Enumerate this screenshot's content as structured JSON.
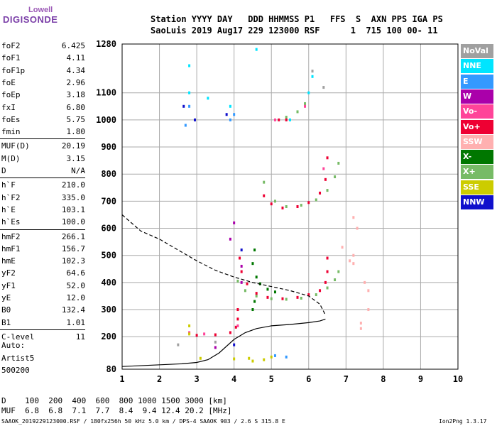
{
  "logo": {
    "line1": "Lowell",
    "line2": "DIGISONDE"
  },
  "header": {
    "line1": "Station YYYY DAY   DDD HHMMSS P1   FFS  S  AXN PPS IGA PS",
    "line2": "SaoLuis 2019 Aug17 229 123000 RSF      1  715 100 00- 11"
  },
  "params": [
    {
      "name": "foF2",
      "value": "6.425"
    },
    {
      "name": "foF1",
      "value": "4.11"
    },
    {
      "name": "foF1p",
      "value": "4.34"
    },
    {
      "name": "foE",
      "value": "2.96"
    },
    {
      "name": "foEp",
      "value": "3.18"
    },
    {
      "name": "fxI",
      "value": "6.80"
    },
    {
      "name": "foEs",
      "value": "5.75"
    },
    {
      "name": "fmin",
      "value": "1.80"
    },
    {
      "name": "MUF(D)",
      "value": "20.19"
    },
    {
      "name": "M(D)",
      "value": "3.15"
    },
    {
      "name": "D",
      "value": "N/A"
    },
    {
      "name": "h`F",
      "value": "210.0"
    },
    {
      "name": "h`F2",
      "value": "335.0"
    },
    {
      "name": "h`E",
      "value": "103.1"
    },
    {
      "name": "h`Es",
      "value": "100.0"
    },
    {
      "name": "hmF2",
      "value": "266.1"
    },
    {
      "name": "hmF1",
      "value": "156.7"
    },
    {
      "name": "hmE",
      "value": "102.3"
    },
    {
      "name": "yF2",
      "value": "64.6"
    },
    {
      "name": "yF1",
      "value": "52.0"
    },
    {
      "name": "yE",
      "value": "12.0"
    },
    {
      "name": "B0",
      "value": "132.4"
    },
    {
      "name": "B1",
      "value": "1.01"
    },
    {
      "name": "C-level",
      "value": "11"
    }
  ],
  "autoscaling": {
    "label": "Auto:",
    "artist": "Artist5",
    "version": "500200"
  },
  "legend": [
    {
      "label": "NoVal",
      "color": "#a0a0a0"
    },
    {
      "label": "NNE",
      "color": "#00e5ff"
    },
    {
      "label": "E",
      "color": "#3399ff"
    },
    {
      "label": "W",
      "color": "#aa00aa"
    },
    {
      "label": "Vo-",
      "color": "#ff4499"
    },
    {
      "label": "Vo+",
      "color": "#ee0033"
    },
    {
      "label": "SSW",
      "color": "#ffb0b0"
    },
    {
      "label": "X-",
      "color": "#007700"
    },
    {
      "label": "X+",
      "color": "#77bb66"
    },
    {
      "label": "SSE",
      "color": "#cccc00"
    },
    {
      "label": "NNW",
      "color": "#1010cc"
    }
  ],
  "muf_table": {
    "line1": "D    100  200  400  600  800 1000 1500 3000 [km]",
    "line2": "MUF  6.8  6.8  7.1  7.7  8.4  9.4 12.4 20.2 [MHz]"
  },
  "footer": {
    "left": "SAAOK_2019229123000.RSF / 180fx256h 50 kHz 5.0 km / DPS-4 SAAOK 903 / 2.6 S 315.8 E",
    "right": "Ion2Png 1.3.17"
  },
  "chart_data": {
    "type": "scatter",
    "xlim": [
      1,
      10
    ],
    "ylim": [
      80,
      1280
    ],
    "x_ticks": [
      "1",
      "2",
      "3",
      "4",
      "5",
      "6",
      "7",
      "8",
      "9",
      "10"
    ],
    "y_ticks": [
      "80",
      "200",
      "300",
      "400",
      "500",
      "600",
      "700",
      "800",
      "900",
      "1000",
      "1100",
      "1280"
    ],
    "grid": true,
    "series": [
      {
        "name": "X+",
        "color": "#77bb66",
        "points": [
          [
            4.1,
            405
          ],
          [
            4.3,
            370
          ],
          [
            4.6,
            350
          ],
          [
            5.0,
            340
          ],
          [
            5.4,
            338
          ],
          [
            5.8,
            342
          ],
          [
            6.2,
            355
          ],
          [
            6.5,
            380
          ],
          [
            6.7,
            410
          ],
          [
            6.8,
            440
          ],
          [
            4.8,
            770
          ],
          [
            5.1,
            700
          ],
          [
            5.4,
            680
          ],
          [
            5.8,
            685
          ],
          [
            6.2,
            705
          ],
          [
            6.5,
            740
          ],
          [
            6.7,
            790
          ],
          [
            6.8,
            840
          ],
          [
            5.4,
            1010
          ],
          [
            5.7,
            1030
          ],
          [
            5.9,
            1060
          ]
        ]
      },
      {
        "name": "X-",
        "color": "#007700",
        "points": [
          [
            4.5,
            470
          ],
          [
            4.6,
            420
          ],
          [
            4.7,
            395
          ],
          [
            4.9,
            375
          ],
          [
            5.1,
            365
          ],
          [
            4.55,
            520
          ],
          [
            4.5,
            300
          ],
          [
            4.55,
            330
          ]
        ]
      },
      {
        "name": "Vo+",
        "color": "#ee0033",
        "points": [
          [
            4.15,
            490
          ],
          [
            4.2,
            440
          ],
          [
            4.35,
            395
          ],
          [
            4.6,
            360
          ],
          [
            4.9,
            345
          ],
          [
            5.3,
            340
          ],
          [
            5.7,
            345
          ],
          [
            6.0,
            355
          ],
          [
            6.3,
            370
          ],
          [
            6.45,
            400
          ],
          [
            6.5,
            440
          ],
          [
            6.5,
            490
          ],
          [
            4.8,
            720
          ],
          [
            5.0,
            690
          ],
          [
            5.3,
            675
          ],
          [
            5.7,
            680
          ],
          [
            6.0,
            695
          ],
          [
            6.3,
            730
          ],
          [
            6.45,
            780
          ],
          [
            6.5,
            860
          ],
          [
            3.0,
            205
          ],
          [
            3.5,
            207
          ],
          [
            3.9,
            215
          ],
          [
            4.05,
            235
          ],
          [
            4.1,
            265
          ],
          [
            4.1,
            300
          ],
          [
            5.2,
            1000
          ],
          [
            5.4,
            1000
          ]
        ]
      },
      {
        "name": "Vo-",
        "color": "#ff4499",
        "points": [
          [
            2.8,
            215
          ],
          [
            3.2,
            210
          ],
          [
            4.1,
            240
          ],
          [
            6.4,
            820
          ],
          [
            5.1,
            1000
          ],
          [
            5.9,
            1050
          ]
        ]
      },
      {
        "name": "SSW",
        "color": "#ffb0b0",
        "points": [
          [
            7.2,
            500
          ],
          [
            7.2,
            470
          ],
          [
            7.5,
            400
          ],
          [
            7.6,
            370
          ],
          [
            7.6,
            300
          ],
          [
            7.4,
            250
          ],
          [
            7.4,
            230
          ],
          [
            7.2,
            640
          ],
          [
            7.3,
            600
          ],
          [
            7.1,
            480
          ],
          [
            6.9,
            530
          ]
        ]
      },
      {
        "name": "SSE",
        "color": "#cccc00",
        "points": [
          [
            2.8,
            240
          ],
          [
            2.8,
            210
          ],
          [
            4.4,
            120
          ],
          [
            4.8,
            115
          ],
          [
            5.0,
            125
          ],
          [
            3.1,
            120
          ],
          [
            4.0,
            118
          ],
          [
            4.5,
            110
          ]
        ]
      },
      {
        "name": "NNE",
        "color": "#00e5ff",
        "points": [
          [
            2.8,
            1100
          ],
          [
            2.8,
            1200
          ],
          [
            3.3,
            1080
          ],
          [
            3.9,
            1050
          ],
          [
            4.6,
            1260
          ],
          [
            5.5,
            1000
          ],
          [
            6.0,
            1100
          ],
          [
            6.1,
            1160
          ]
        ]
      },
      {
        "name": "E",
        "color": "#3399ff",
        "points": [
          [
            2.8,
            1050
          ],
          [
            2.7,
            980
          ],
          [
            3.9,
            1000
          ],
          [
            4.0,
            1020
          ],
          [
            5.1,
            130
          ],
          [
            5.4,
            125
          ]
        ]
      },
      {
        "name": "W",
        "color": "#aa00aa",
        "points": [
          [
            3.5,
            160
          ],
          [
            4.2,
            460
          ],
          [
            4.2,
            400
          ],
          [
            3.9,
            560
          ],
          [
            4.0,
            620
          ]
        ]
      },
      {
        "name": "NNW",
        "color": "#1010cc",
        "points": [
          [
            2.95,
            1000
          ],
          [
            3.8,
            1020
          ],
          [
            4.0,
            170
          ],
          [
            4.2,
            520
          ],
          [
            2.65,
            1050
          ]
        ]
      },
      {
        "name": "NoVal",
        "color": "#a0a0a0",
        "points": [
          [
            2.5,
            170
          ],
          [
            3.5,
            180
          ],
          [
            6.4,
            1120
          ],
          [
            6.1,
            1180
          ]
        ]
      }
    ],
    "profiles": [
      {
        "name": "profile-solid",
        "style": "solid",
        "points": [
          [
            1,
            90
          ],
          [
            1.8,
            95
          ],
          [
            2.6,
            100
          ],
          [
            3.0,
            105
          ],
          [
            3.3,
            115
          ],
          [
            3.6,
            140
          ],
          [
            4.0,
            190
          ],
          [
            4.3,
            215
          ],
          [
            4.6,
            230
          ],
          [
            5.0,
            240
          ],
          [
            5.5,
            245
          ],
          [
            6.0,
            252
          ],
          [
            6.3,
            258
          ],
          [
            6.45,
            265
          ]
        ]
      },
      {
        "name": "profile-dashed",
        "style": "dashed",
        "points": [
          [
            1,
            650
          ],
          [
            1.5,
            590
          ],
          [
            2.0,
            560
          ],
          [
            2.5,
            520
          ],
          [
            3.0,
            480
          ],
          [
            3.5,
            445
          ],
          [
            4.0,
            420
          ],
          [
            4.5,
            400
          ],
          [
            5.0,
            385
          ],
          [
            5.5,
            370
          ],
          [
            6.0,
            350
          ],
          [
            6.3,
            320
          ],
          [
            6.45,
            280
          ]
        ]
      }
    ]
  }
}
